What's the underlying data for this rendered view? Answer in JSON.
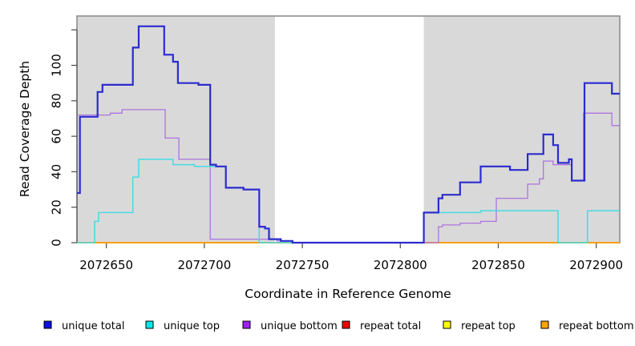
{
  "chart_data": {
    "type": "line",
    "subtype": "step",
    "title": "",
    "xlabel": "Coordinate in Reference Genome",
    "ylabel": "Read Coverage Depth",
    "xlim": [
      2072635,
      2072912
    ],
    "ylim": [
      0,
      127.8
    ],
    "grid": false,
    "legend_position": "bottom",
    "x_ticks": [
      {
        "v": 2072650,
        "label": "2072650"
      },
      {
        "v": 2072700,
        "label": "2072700"
      },
      {
        "v": 2072750,
        "label": "2072750"
      },
      {
        "v": 2072800,
        "label": "2072800"
      },
      {
        "v": 2072850,
        "label": "2072850"
      },
      {
        "v": 2072900,
        "label": "2072900"
      }
    ],
    "y_ticks": [
      {
        "v": 0,
        "label": "0"
      },
      {
        "v": 20,
        "label": "20"
      },
      {
        "v": 40,
        "label": "40"
      },
      {
        "v": 60,
        "label": "60"
      },
      {
        "v": 80,
        "label": "80"
      },
      {
        "v": 100,
        "label": "100"
      },
      {
        "v": 120,
        "label": ""
      }
    ],
    "shaded_regions": [
      {
        "x0": 2072635,
        "x1": 2072736,
        "color": "#d9d9d9"
      },
      {
        "x0": 2072812,
        "x1": 2072912,
        "color": "#d9d9d9"
      }
    ],
    "series": [
      {
        "name": "repeat total",
        "color": "#dd1111",
        "width": 1.2,
        "points": [
          [
            2072635,
            0
          ]
        ]
      },
      {
        "name": "repeat top",
        "color": "#f0f000",
        "width": 1.2,
        "points": [
          [
            2072635,
            0
          ]
        ]
      },
      {
        "name": "repeat bottom",
        "color": "#ff9d0a",
        "width": 1.8,
        "points": [
          [
            2072635,
            0
          ]
        ]
      },
      {
        "name": "unique bottom",
        "color": "#ae72de",
        "width": 1.3,
        "points": [
          [
            2072635,
            72
          ],
          [
            2072652,
            73
          ],
          [
            2072658,
            75
          ],
          [
            2072680,
            59
          ],
          [
            2072687,
            47
          ],
          [
            2072703,
            2
          ],
          [
            2072737,
            1
          ],
          [
            2072745,
            0
          ],
          [
            2072819.5,
            9
          ],
          [
            2072821.5,
            10
          ],
          [
            2072830.5,
            11
          ],
          [
            2072841,
            12
          ],
          [
            2072849,
            25
          ],
          [
            2072865,
            33
          ],
          [
            2072871,
            36
          ],
          [
            2072873,
            46
          ],
          [
            2072878,
            44
          ],
          [
            2072887.5,
            35
          ],
          [
            2072893.5,
            73
          ],
          [
            2072908,
            66
          ]
        ]
      },
      {
        "name": "unique top",
        "color": "#46dbe3",
        "width": 1.5,
        "points": [
          [
            2072635,
            0
          ],
          [
            2072644,
            12
          ],
          [
            2072646,
            17
          ],
          [
            2072663.5,
            37
          ],
          [
            2072666.5,
            47
          ],
          [
            2072684,
            44
          ],
          [
            2072695,
            43
          ],
          [
            2072711,
            31
          ],
          [
            2072720,
            30
          ],
          [
            2072728,
            0
          ],
          [
            2072812,
            17
          ],
          [
            2072841,
            18
          ],
          [
            2072880.5,
            0
          ],
          [
            2072895.5,
            18
          ]
        ]
      },
      {
        "name": "unique total",
        "color": "#2b2bd0",
        "width": 2.2,
        "points": [
          [
            2072635,
            28
          ],
          [
            2072636.5,
            71
          ],
          [
            2072645.5,
            85
          ],
          [
            2072648,
            89
          ],
          [
            2072663.5,
            110
          ],
          [
            2072666.5,
            122
          ],
          [
            2072679.5,
            106
          ],
          [
            2072684,
            102
          ],
          [
            2072686.5,
            90
          ],
          [
            2072697,
            89
          ],
          [
            2072703,
            44
          ],
          [
            2072706,
            43
          ],
          [
            2072711,
            31
          ],
          [
            2072720,
            30
          ],
          [
            2072728,
            9
          ],
          [
            2072731,
            8
          ],
          [
            2072733,
            2
          ],
          [
            2072739,
            1
          ],
          [
            2072745,
            0
          ],
          [
            2072812,
            17
          ],
          [
            2072819.5,
            25
          ],
          [
            2072821.5,
            27
          ],
          [
            2072830.5,
            34
          ],
          [
            2072841,
            43
          ],
          [
            2072856,
            41
          ],
          [
            2072865,
            50
          ],
          [
            2072873,
            61
          ],
          [
            2072878,
            55
          ],
          [
            2072880.5,
            45
          ],
          [
            2072886,
            47
          ],
          [
            2072887.5,
            35
          ],
          [
            2072894,
            90
          ],
          [
            2072908,
            84
          ]
        ]
      }
    ],
    "legend": [
      {
        "label": "unique total",
        "color": "#0d0de8"
      },
      {
        "label": "unique top",
        "color": "#00e8ee"
      },
      {
        "label": "unique bottom",
        "color": "#a020f0"
      },
      {
        "label": "repeat total",
        "color": "#ee0000"
      },
      {
        "label": "repeat top",
        "color": "#fcfc00"
      },
      {
        "label": "repeat bottom",
        "color": "#ffa500"
      }
    ]
  }
}
